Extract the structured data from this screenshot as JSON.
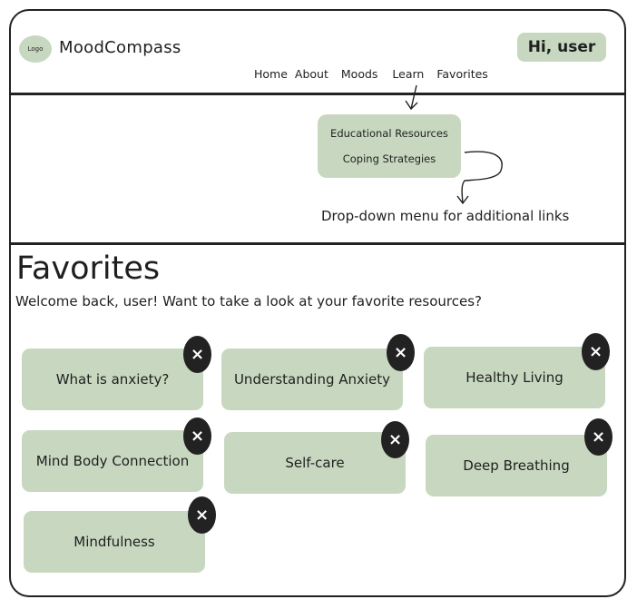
{
  "header": {
    "logo_text": "Logo",
    "app_name": "MoodCompass",
    "user_greeting": "Hi, user",
    "nav": [
      "Home",
      "About",
      "Moods",
      "Learn",
      "Favorites"
    ]
  },
  "dropdown": {
    "items": [
      "Educational Resources",
      "Coping Strategies"
    ],
    "annotation": "Drop-down menu for additional links"
  },
  "main": {
    "title": "Favorites",
    "welcome": "Welcome back, user! Want to take a look at your favorite resources?",
    "favorites": [
      "What is anxiety?",
      "Understanding Anxiety",
      "Healthy Living",
      "Mind Body Connection",
      "Self-care",
      "Deep Breathing",
      "Mindfulness"
    ],
    "remove_glyph": "×"
  },
  "colors": {
    "card": "#c8d8c0",
    "close": "#222222",
    "border": "#222222"
  }
}
